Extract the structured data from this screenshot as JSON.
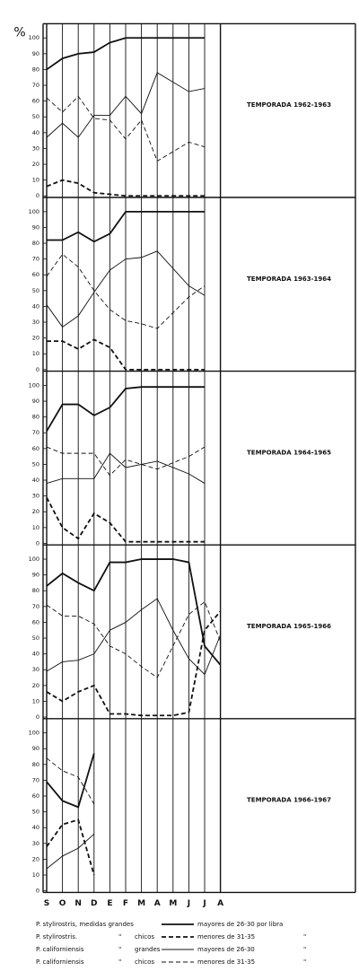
{
  "chart_data": [
    {
      "type": "line",
      "title": "TEMPORADA 1962-1963",
      "ylabel": "%",
      "ylim": [
        -1,
        109
      ],
      "yticks": [
        0,
        10,
        20,
        30,
        40,
        50,
        60,
        70,
        80,
        90,
        100
      ],
      "series": [
        {
          "style": "solid",
          "width": 2,
          "color": "#111",
          "values": [
            80,
            87,
            90,
            91,
            97,
            100,
            100,
            100,
            100,
            100,
            100,
            null
          ]
        },
        {
          "style": "dashed",
          "width": 2,
          "color": "#111",
          "values": [
            6,
            10,
            8,
            2,
            1,
            0,
            0,
            0,
            0,
            0,
            0,
            null
          ]
        },
        {
          "style": "solid",
          "width": 1,
          "color": "#111",
          "values": [
            37,
            46,
            37,
            51,
            51,
            63,
            52,
            78,
            72,
            66,
            68,
            null
          ]
        },
        {
          "style": "dashed",
          "width": 1,
          "color": "#111",
          "values": [
            62,
            53,
            63,
            49,
            48,
            36,
            48,
            22,
            28,
            34,
            31,
            null
          ]
        }
      ]
    },
    {
      "type": "line",
      "title": "TEMPORADA 1963-1964",
      "ylim": [
        -1,
        109
      ],
      "yticks": [
        0,
        10,
        20,
        30,
        40,
        50,
        60,
        70,
        80,
        90,
        100
      ],
      "series": [
        {
          "style": "solid",
          "width": 2,
          "color": "#111",
          "values": [
            82,
            82,
            87,
            81,
            86,
            100,
            100,
            100,
            100,
            100,
            100,
            null
          ]
        },
        {
          "style": "dashed",
          "width": 2,
          "color": "#111",
          "values": [
            18,
            18,
            13,
            19,
            14,
            0,
            0,
            0,
            0,
            0,
            0,
            null
          ]
        },
        {
          "style": "solid",
          "width": 1,
          "color": "#111",
          "values": [
            41,
            27,
            34,
            49,
            63,
            70,
            71,
            75,
            64,
            53,
            47,
            null
          ]
        },
        {
          "style": "dashed",
          "width": 1,
          "color": "#111",
          "values": [
            59,
            73,
            65,
            50,
            38,
            31,
            29,
            26,
            36,
            46,
            53,
            null
          ]
        }
      ]
    },
    {
      "type": "line",
      "title": "TEMPORADA 1964-1965",
      "ylim": [
        -1,
        109
      ],
      "yticks": [
        0,
        10,
        20,
        30,
        40,
        50,
        60,
        70,
        80,
        90,
        100
      ],
      "series": [
        {
          "style": "solid",
          "width": 2,
          "color": "#111",
          "values": [
            71,
            88,
            88,
            81,
            86,
            98,
            99,
            99,
            99,
            99,
            99,
            null
          ]
        },
        {
          "style": "dashed",
          "width": 2,
          "color": "#111",
          "values": [
            29,
            10,
            3,
            19,
            13,
            1,
            1,
            1,
            1,
            1,
            1,
            null
          ]
        },
        {
          "style": "solid",
          "width": 1,
          "color": "#111",
          "values": [
            38,
            41,
            41,
            41,
            57,
            48,
            50,
            52,
            48,
            44,
            38,
            null
          ]
        },
        {
          "style": "dashed",
          "width": 1,
          "color": "#111",
          "values": [
            61,
            57,
            57,
            57,
            43,
            53,
            50,
            47,
            51,
            55,
            61,
            null
          ]
        }
      ]
    },
    {
      "type": "line",
      "title": "TEMPORADA 1965-1966",
      "ylim": [
        -1,
        109
      ],
      "yticks": [
        0,
        10,
        20,
        30,
        40,
        50,
        60,
        70,
        80,
        90,
        100
      ],
      "series": [
        {
          "style": "solid",
          "width": 2,
          "color": "#111",
          "values": [
            83,
            91,
            85,
            80,
            98,
            98,
            100,
            100,
            100,
            98,
            45,
            33
          ]
        },
        {
          "style": "dashed",
          "width": 2,
          "color": "#111",
          "values": [
            16,
            10,
            16,
            20,
            2,
            2,
            1,
            1,
            1,
            3,
            55,
            67
          ]
        },
        {
          "style": "solid",
          "width": 1,
          "color": "#111",
          "values": [
            29,
            35,
            36,
            40,
            55,
            60,
            68,
            75,
            55,
            37,
            27,
            52
          ]
        },
        {
          "style": "dashed",
          "width": 1,
          "color": "#111",
          "values": [
            71,
            64,
            64,
            59,
            45,
            40,
            32,
            25,
            45,
            65,
            73,
            48
          ]
        }
      ]
    },
    {
      "type": "line",
      "title": "TEMPORADA 1966-1967",
      "ylim": [
        -1,
        109
      ],
      "yticks": [
        0,
        10,
        20,
        30,
        40,
        50,
        60,
        70,
        80,
        90,
        100
      ],
      "categories": [
        "S",
        "O",
        "N",
        "D",
        "E",
        "F",
        "M",
        "A",
        "M",
        "J",
        "J",
        "A"
      ],
      "series": [
        {
          "style": "solid",
          "width": 2,
          "color": "#111",
          "values": [
            69,
            57,
            53,
            87,
            null,
            null,
            null,
            null,
            null,
            null,
            null,
            null
          ]
        },
        {
          "style": "dashed",
          "width": 2,
          "color": "#111",
          "values": [
            28,
            42,
            45,
            10,
            null,
            null,
            null,
            null,
            null,
            null,
            null,
            null
          ]
        },
        {
          "style": "solid",
          "width": 1,
          "color": "#111",
          "values": [
            14,
            22,
            27,
            36,
            null,
            null,
            null,
            null,
            null,
            null,
            null,
            null
          ]
        },
        {
          "style": "dashed",
          "width": 1,
          "color": "#111",
          "values": [
            84,
            76,
            72,
            55,
            null,
            null,
            null,
            null,
            null,
            null,
            null,
            null
          ]
        }
      ]
    }
  ],
  "legend": [
    {
      "left": "P. stylirostris, medidas grandes",
      "right": "mayores de 26-30 por libra",
      "style": "solid",
      "width": 2
    },
    {
      "left": "P. stylirostris.",
      "ditto": "\"",
      "size": "chicos",
      "right": "menores de 31-35",
      "ditto_end": "\"",
      "style": "dashed",
      "width": 2
    },
    {
      "left": "P. californiensis",
      "ditto": "\"",
      "size": "grandes",
      "right": "mayores de 26-30",
      "ditto_end": "\"",
      "style": "solid",
      "width": 1
    },
    {
      "left": "P. californiensis",
      "ditto": "\"",
      "size": "chicos",
      "right": "menores de 31-35",
      "ditto_end": "\"",
      "style": "dashed",
      "width": 1
    }
  ]
}
